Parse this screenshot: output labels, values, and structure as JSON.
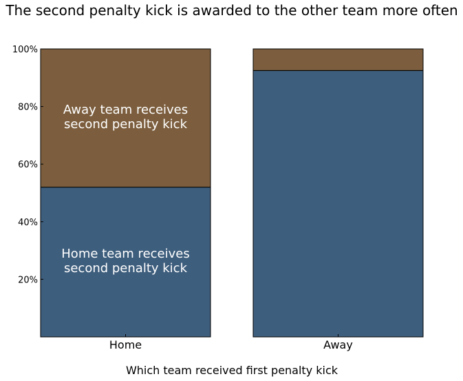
{
  "chart_data": {
    "type": "bar",
    "stacked": true,
    "title": "The second penalty kick is awarded to the other team more often",
    "xlabel": "Which team received first penalty kick",
    "ylabel": "",
    "categories": [
      "Home",
      "Away"
    ],
    "ylim": [
      0,
      100
    ],
    "yticks": [
      20,
      40,
      60,
      80,
      100
    ],
    "ytick_labels": [
      "20%",
      "40%",
      "60%",
      "80%",
      "100%"
    ],
    "grid": false,
    "series": [
      {
        "annotation": [
          "Home team receives",
          "second penalty kick"
        ],
        "values": [
          52,
          92.5
        ],
        "color": "#3e5e7d"
      },
      {
        "annotation": [
          "Away team receives",
          "second penalty kick"
        ],
        "values": [
          48,
          7.5
        ],
        "color": "#7c5e3e"
      }
    ]
  }
}
